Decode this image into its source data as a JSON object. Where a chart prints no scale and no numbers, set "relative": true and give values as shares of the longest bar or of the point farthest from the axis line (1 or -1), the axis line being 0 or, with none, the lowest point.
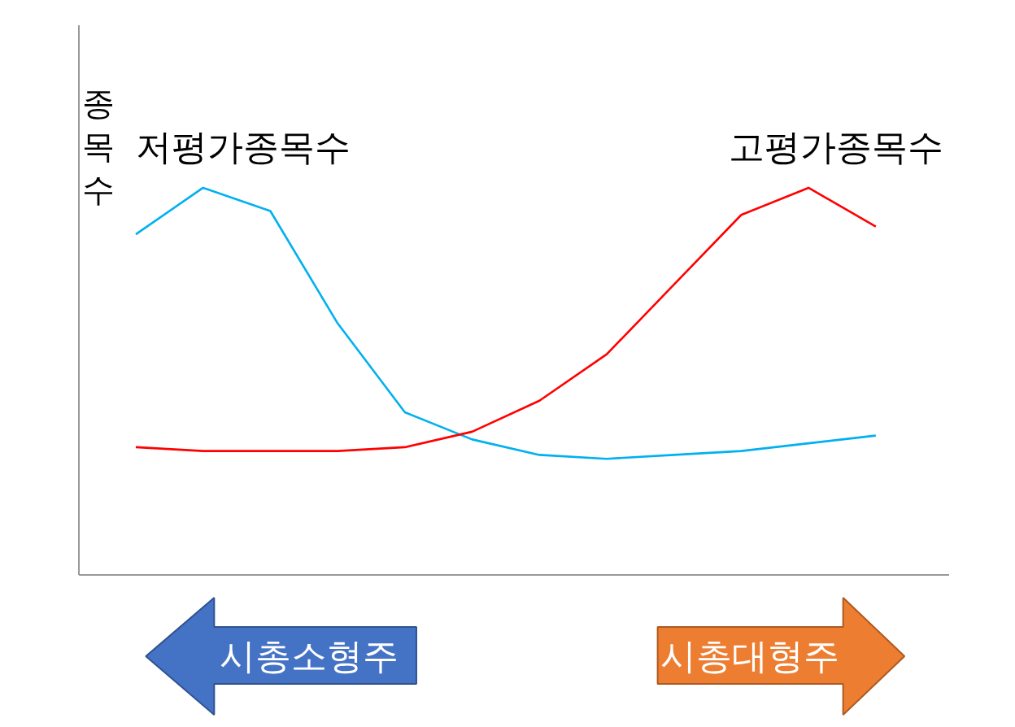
{
  "chart_data": {
    "type": "line",
    "relative": true,
    "ylabel": "종목수",
    "categories": [
      null,
      null,
      null,
      null,
      null,
      null,
      null,
      null,
      null,
      null,
      null,
      null
    ],
    "series": [
      {
        "name": "저평가종목수",
        "color": "#00b0f0",
        "values": [
          0.88,
          1.0,
          0.94,
          0.65,
          0.42,
          0.35,
          0.31,
          0.3,
          0.31,
          0.32,
          0.34,
          0.36
        ]
      },
      {
        "name": "고평가종목수",
        "color": "#ff0000",
        "values": [
          0.33,
          0.32,
          0.32,
          0.32,
          0.33,
          0.37,
          0.45,
          0.57,
          0.75,
          0.93,
          1.0,
          0.9
        ]
      }
    ],
    "annotations": [
      "시총소형주",
      "시총대형주"
    ]
  }
}
